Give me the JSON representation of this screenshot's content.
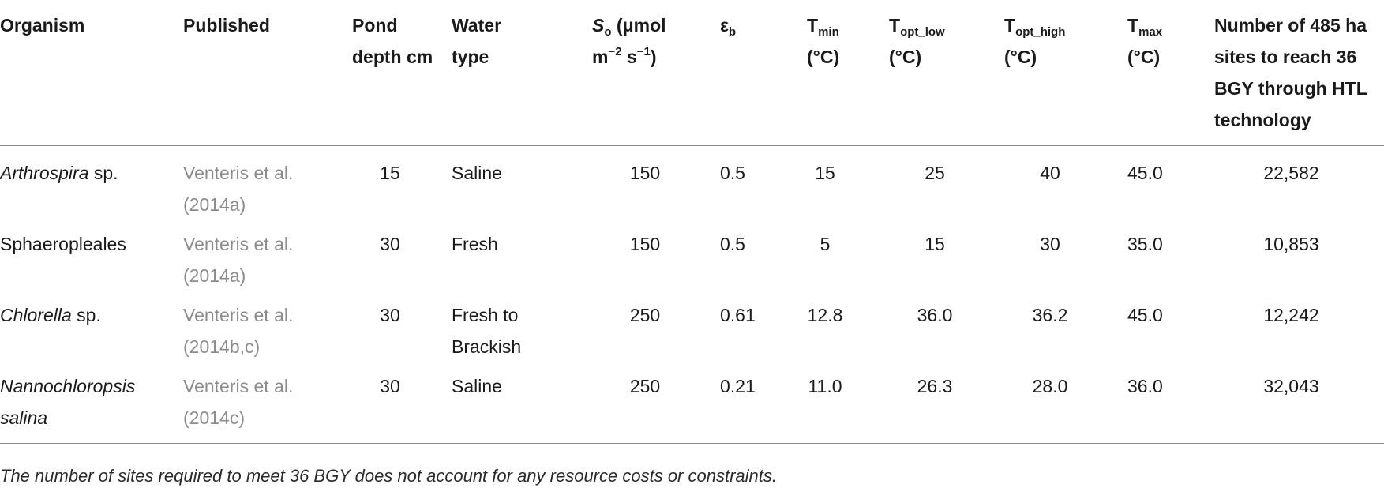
{
  "table": {
    "headers": {
      "organism": "Organism",
      "published": "Published",
      "pond_depth": "Pond depth cm",
      "water_type": "Water type",
      "so_symbol": "S",
      "so_sub": "o",
      "so_unit_a": " (μmol",
      "so_unit_b": "m",
      "so_exp1": "−2",
      "so_unit_c": " s",
      "so_exp2": "−1",
      "so_unit_d": ")",
      "eb_symbol": "ε",
      "eb_sub": "b",
      "tmin_symbol": "T",
      "tmin_sub": "min",
      "tmin_unit": "(°C)",
      "toptlow_symbol": "T",
      "toptlow_sub": "opt_low",
      "toptlow_unit": "(°C)",
      "topthigh_symbol": "T",
      "topthigh_sub": "opt_high",
      "topthigh_unit": "(°C)",
      "tmax_symbol": "T",
      "tmax_sub": "max",
      "tmax_unit": "(°C)",
      "sites": "Number of 485 ha sites to reach 36 BGY through HTL technology"
    },
    "rows": [
      {
        "organism_italic": "Arthrospira",
        "organism_rest": " sp.",
        "published": "Venteris et al. (2014a)",
        "pond_depth": "15",
        "water_type": "Saline",
        "so": "150",
        "eb": "0.5",
        "tmin": "15",
        "topt_low": "25",
        "topt_high": "40",
        "tmax": "45.0",
        "sites": "22,582"
      },
      {
        "organism_italic": "",
        "organism_rest": "Sphaeropleales",
        "published": "Venteris et al. (2014a)",
        "pond_depth": "30",
        "water_type": "Fresh",
        "so": "150",
        "eb": "0.5",
        "tmin": "5",
        "topt_low": "15",
        "topt_high": "30",
        "tmax": "35.0",
        "sites": "10,853"
      },
      {
        "organism_italic": "Chlorella",
        "organism_rest": " sp.",
        "published": "Venteris et al. (2014b,c)",
        "pond_depth": "30",
        "water_type": "Fresh to Brackish",
        "so": "250",
        "eb": "0.61",
        "tmin": "12.8",
        "topt_low": "36.0",
        "topt_high": "36.2",
        "tmax": "45.0",
        "sites": "12,242"
      },
      {
        "organism_italic": "Nannochloropsis salina",
        "organism_rest": "",
        "published": "Venteris et al. (2014c)",
        "pond_depth": "30",
        "water_type": "Saline",
        "so": "250",
        "eb": "0.21",
        "tmin": "11.0",
        "topt_low": "26.3",
        "topt_high": "28.0",
        "tmax": "36.0",
        "sites": "32,043"
      }
    ]
  },
  "footnote": "The number of sites required to meet 36 BGY does not account for any resource costs or constraints."
}
